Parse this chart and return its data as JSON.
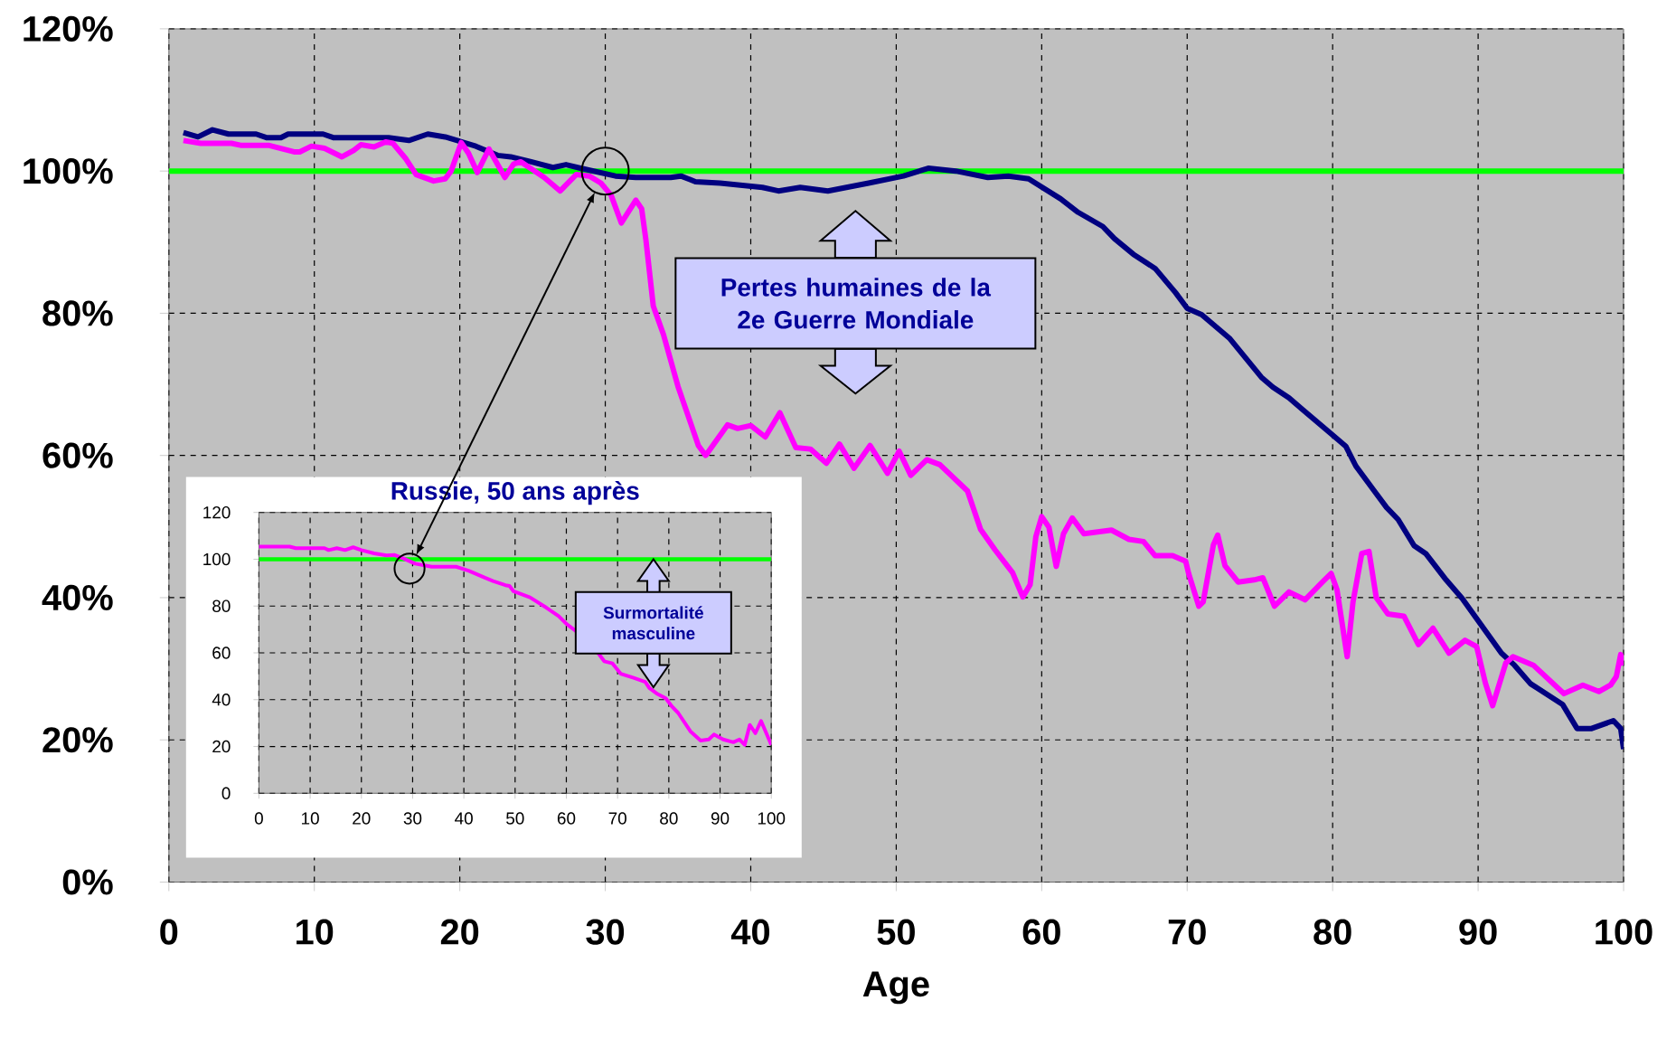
{
  "chart_data": [
    {
      "type": "line",
      "xlabel": "Age",
      "xlim": [
        0,
        100
      ],
      "xticks": [
        0,
        10,
        20,
        30,
        40,
        50,
        60,
        70,
        80,
        90,
        100
      ],
      "ylim": [
        0,
        120
      ],
      "yticks": [
        {
          "value": 0,
          "label": "0%"
        },
        {
          "value": 20,
          "label": "20%"
        },
        {
          "value": 40,
          "label": "40%"
        },
        {
          "value": 60,
          "label": "60%"
        },
        {
          "value": 80,
          "label": "80%"
        },
        {
          "value": 100,
          "label": "100%"
        },
        {
          "value": 120,
          "label": "120%"
        }
      ],
      "grid": true,
      "ref_lines": [
        {
          "axis": "y",
          "value": 100,
          "color": "#00ff00"
        }
      ],
      "annotations": [
        "Pertes humaines de la 2e Guerre Mondiale"
      ],
      "series": [
        {
          "color": "#000080",
          "x": [
            1,
            2,
            3,
            4.1,
            6,
            6.7,
            7.7,
            8.2,
            10.6,
            11.3,
            15.1,
            16.5,
            17.8,
            19,
            21.1,
            22.6,
            23.5,
            24.9,
            26.4,
            27.3,
            28.3,
            30.7,
            32.1,
            34.5,
            35.2,
            36.2,
            37.9,
            40.8,
            41.9,
            43.4,
            45.3,
            48.1,
            50.5,
            52.2,
            54.1,
            56.3,
            57.7,
            59.1,
            61.3,
            62.5,
            64.2,
            65,
            66.3,
            67.8,
            69.2,
            70,
            71,
            72.9,
            75.1,
            75.9,
            77,
            77.9,
            80.1,
            80.9,
            81.6,
            83.7,
            84.5,
            85.6,
            86.4,
            87.8,
            88.9,
            91.6,
            92.5,
            93.6,
            95.8,
            96.8,
            97.8,
            99.3,
            99.8,
            100
          ],
          "values": [
            105.4,
            104.8,
            105.8,
            105.2,
            105.2,
            104.7,
            104.7,
            105.2,
            105.2,
            104.7,
            104.7,
            104.3,
            105.2,
            104.8,
            103.5,
            102.2,
            102,
            101.3,
            100.5,
            100.9,
            100.4,
            99.3,
            99.1,
            99.1,
            99.3,
            98.5,
            98.3,
            97.7,
            97.2,
            97.7,
            97.2,
            98.3,
            99.3,
            100.4,
            100,
            99.1,
            99.3,
            98.9,
            96.1,
            94.2,
            92.2,
            90.5,
            88.3,
            86.3,
            82.9,
            80.7,
            79.8,
            76.5,
            71,
            69.6,
            68.1,
            66.5,
            62.7,
            61.3,
            58.5,
            52.7,
            51,
            47.3,
            46.2,
            42.5,
            39.9,
            32.2,
            30.5,
            27.9,
            25,
            21.6,
            21.6,
            22.7,
            21.6,
            18.7
          ]
        },
        {
          "color": "#ff00ff",
          "x": [
            1,
            2.2,
            4.3,
            5,
            6.9,
            8.6,
            9,
            9.8,
            10.7,
            11.9,
            12.7,
            13.2,
            14.1,
            14.9,
            15.4,
            16.3,
            17,
            18.2,
            19,
            19.4,
            20.1,
            20.6,
            21.2,
            22,
            23.1,
            23.7,
            24.2,
            25.8,
            26.9,
            28,
            28.9,
            29.7,
            30.4,
            31.1,
            32.1,
            32.5,
            32.8,
            33.3,
            34,
            35,
            36.4,
            36.9,
            38.4,
            39.1,
            40,
            41,
            42,
            43.1,
            44.1,
            45.2,
            46.1,
            47.1,
            48.2,
            49.4,
            50.2,
            51,
            52.1,
            53,
            54.9,
            55.8,
            56.8,
            58,
            58.7,
            59.2,
            59.6,
            60,
            60.5,
            61,
            61.5,
            62.1,
            62.9,
            64.8,
            66,
            67,
            67.8,
            69,
            69.9,
            70.1,
            70.8,
            71.1,
            71.8,
            72.1,
            72.6,
            73.5,
            74.6,
            75.2,
            76,
            77,
            78.1,
            79.3,
            79.9,
            80.3,
            81,
            81.4,
            82,
            82.5,
            83,
            83.8,
            84.9,
            85.9,
            86.9,
            88,
            89.1,
            89.9,
            90.5,
            91,
            91.9,
            92.4,
            93.8,
            95.9,
            97.2,
            98.3,
            99.1,
            99.5,
            99.8,
            100
          ],
          "values": [
            104.3,
            103.9,
            103.9,
            103.6,
            103.6,
            102.7,
            102.7,
            103.5,
            103.2,
            102,
            102.9,
            103.7,
            103.4,
            104.1,
            103.9,
            101.7,
            99.5,
            98.6,
            98.9,
            100,
            104,
            102.5,
            99.8,
            103.1,
            99.1,
            101,
            101.3,
            99.1,
            97.2,
            99.5,
            99.3,
            98.3,
            96.6,
            92.7,
            95.9,
            94.7,
            90.2,
            81,
            77,
            69.7,
            61.4,
            60,
            64.3,
            63.8,
            64.2,
            62.6,
            66,
            61.1,
            60.9,
            58.9,
            61.6,
            58.2,
            61.4,
            57.5,
            60.6,
            57.2,
            59.4,
            58.7,
            55,
            49.6,
            46.7,
            43.5,
            40.1,
            41.8,
            48.6,
            51.4,
            49.9,
            44.4,
            49,
            51.2,
            49,
            49.5,
            48.2,
            47.9,
            45.9,
            45.9,
            45.1,
            43.4,
            38.8,
            39.4,
            47.4,
            48.8,
            44.5,
            42.2,
            42.5,
            42.8,
            38.8,
            40.8,
            39.7,
            42.2,
            43.4,
            41.1,
            31.7,
            39.4,
            46.2,
            46.5,
            40,
            37.7,
            37.4,
            33.4,
            35.7,
            32.2,
            34,
            33.1,
            28,
            24.8,
            30.8,
            31.7,
            30.5,
            26.5,
            27.7,
            26.8,
            27.7,
            28.9,
            32,
            30.5
          ]
        }
      ]
    },
    {
      "type": "line",
      "title": "Russie, 50 ans après",
      "xlim": [
        0,
        100
      ],
      "xticks": [
        0,
        10,
        20,
        30,
        40,
        50,
        60,
        70,
        80,
        90,
        100
      ],
      "ylim": [
        0,
        120
      ],
      "yticks": [
        0,
        20,
        40,
        60,
        80,
        100,
        120
      ],
      "grid": true,
      "ref_lines": [
        {
          "axis": "y",
          "value": 100,
          "color": "#00ff00"
        }
      ],
      "annotations": [
        {
          "text": "Surmortalité masculine",
          "x": 77,
          "y": 100
        }
      ],
      "series": [
        {
          "color": "#ff00ff",
          "x": [
            0,
            6,
            7.2,
            12.8,
            13.6,
            15.2,
            16.8,
            18.4,
            20,
            22.5,
            24.9,
            26.5,
            28.1,
            30.5,
            33.7,
            38.5,
            40.9,
            44.1,
            45.7,
            48.1,
            48.9,
            49.7,
            52.9,
            56.1,
            58.5,
            60.1,
            61.7,
            66.2,
            67.4,
            69,
            70.6,
            73,
            75.4,
            76.2,
            77.8,
            79.4,
            80.6,
            81.8,
            84.2,
            86.2,
            87.8,
            88.8,
            90.6,
            92.6,
            93.8,
            94.8,
            95.8,
            96.9,
            98,
            100
          ],
          "values": [
            105.4,
            105.4,
            104.7,
            104.7,
            103.9,
            104.7,
            103.9,
            105.1,
            103.9,
            102.5,
            101.6,
            101.8,
            100.4,
            98.1,
            96.8,
            96.8,
            95.1,
            92.1,
            90.7,
            88.9,
            88.6,
            86.3,
            83.7,
            79.3,
            75.7,
            72.2,
            69.6,
            59.9,
            56.4,
            55.5,
            51.1,
            49.4,
            47.6,
            45,
            42.4,
            40.6,
            37.1,
            34.4,
            26.5,
            22.5,
            23,
            25.1,
            23,
            21.8,
            23,
            20.7,
            29.2,
            25.7,
            30.9,
            20.7
          ]
        }
      ]
    }
  ]
}
